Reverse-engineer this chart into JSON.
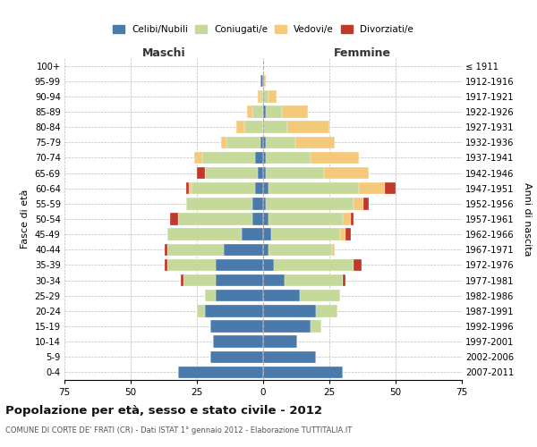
{
  "age_groups": [
    "0-4",
    "5-9",
    "10-14",
    "15-19",
    "20-24",
    "25-29",
    "30-34",
    "35-39",
    "40-44",
    "45-49",
    "50-54",
    "55-59",
    "60-64",
    "65-69",
    "70-74",
    "75-79",
    "80-84",
    "85-89",
    "90-94",
    "95-99",
    "100+"
  ],
  "birth_years": [
    "2007-2011",
    "2002-2006",
    "1997-2001",
    "1992-1996",
    "1987-1991",
    "1982-1986",
    "1977-1981",
    "1972-1976",
    "1967-1971",
    "1962-1966",
    "1957-1961",
    "1952-1956",
    "1947-1951",
    "1942-1946",
    "1937-1941",
    "1932-1936",
    "1927-1931",
    "1922-1926",
    "1917-1921",
    "1912-1916",
    "≤ 1911"
  ],
  "male": {
    "celibi": [
      32,
      20,
      19,
      20,
      22,
      18,
      18,
      18,
      15,
      8,
      4,
      4,
      3,
      2,
      3,
      1,
      0,
      0,
      0,
      1,
      0
    ],
    "coniugati": [
      0,
      0,
      0,
      0,
      3,
      4,
      12,
      18,
      21,
      28,
      28,
      25,
      24,
      20,
      20,
      13,
      7,
      4,
      1,
      0,
      0
    ],
    "vedovi": [
      0,
      0,
      0,
      0,
      0,
      0,
      0,
      0,
      0,
      0,
      0,
      0,
      1,
      0,
      3,
      2,
      3,
      2,
      1,
      0,
      0
    ],
    "divorziati": [
      0,
      0,
      0,
      0,
      0,
      0,
      1,
      1,
      1,
      0,
      3,
      0,
      1,
      3,
      0,
      0,
      0,
      0,
      0,
      0,
      0
    ]
  },
  "female": {
    "nubili": [
      30,
      20,
      13,
      18,
      20,
      14,
      8,
      4,
      2,
      3,
      2,
      1,
      2,
      1,
      1,
      1,
      0,
      1,
      0,
      0,
      0
    ],
    "coniugate": [
      0,
      0,
      0,
      4,
      8,
      15,
      22,
      30,
      24,
      26,
      28,
      33,
      34,
      22,
      17,
      11,
      9,
      6,
      2,
      0,
      0
    ],
    "vedove": [
      0,
      0,
      0,
      0,
      0,
      0,
      0,
      0,
      1,
      2,
      3,
      4,
      10,
      17,
      18,
      15,
      16,
      10,
      3,
      1,
      0
    ],
    "divorziate": [
      0,
      0,
      0,
      0,
      0,
      0,
      1,
      3,
      0,
      2,
      1,
      2,
      4,
      0,
      0,
      0,
      0,
      0,
      0,
      0,
      0
    ]
  },
  "colors": {
    "celibi": "#4a7aab",
    "coniugati": "#c5d99b",
    "vedovi": "#f5c97a",
    "divorziati": "#c0392b"
  },
  "xlim": 75,
  "title": "Popolazione per età, sesso e stato civile - 2012",
  "subtitle": "COMUNE DI CORTE DE' FRATI (CR) - Dati ISTAT 1° gennaio 2012 - Elaborazione TUTTITALIA.IT",
  "ylabel_left": "Fasce di età",
  "ylabel_right": "Anni di nascita",
  "xlabel_left": "Maschi",
  "xlabel_right": "Femmine"
}
